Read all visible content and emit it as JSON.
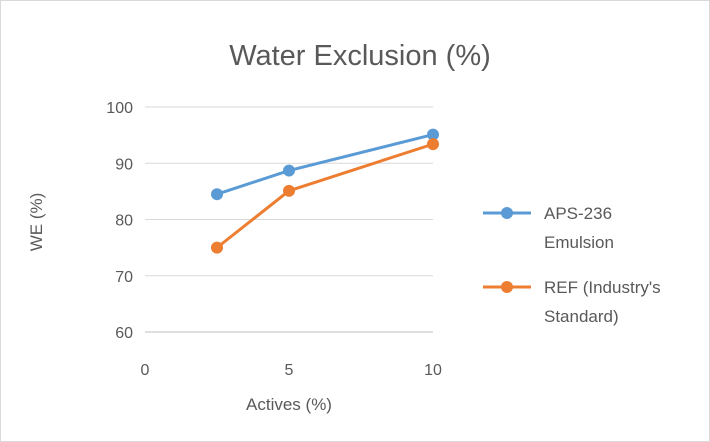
{
  "chart_data": {
    "type": "line",
    "title": "Water Exclusion (%)",
    "xlabel": "Actives (%)",
    "ylabel": "WE (%)",
    "xlim": [
      0,
      10
    ],
    "ylim": [
      60,
      100
    ],
    "xticks": [
      0,
      5,
      10
    ],
    "yticks": [
      60,
      70,
      80,
      90,
      100
    ],
    "grid": "horizontal",
    "legend_position": "right",
    "series": [
      {
        "name_lines": [
          "APS-236",
          "Emulsion"
        ],
        "color": "#5b9bd5",
        "points": [
          [
            2.5,
            84.5
          ],
          [
            5,
            88.7
          ],
          [
            10,
            95.1
          ]
        ]
      },
      {
        "name_lines": [
          "REF (Industry's",
          "Standard)"
        ],
        "color": "#ed7d31",
        "points": [
          [
            2.5,
            75
          ],
          [
            5,
            85.1
          ],
          [
            10,
            93.4
          ]
        ]
      }
    ]
  }
}
